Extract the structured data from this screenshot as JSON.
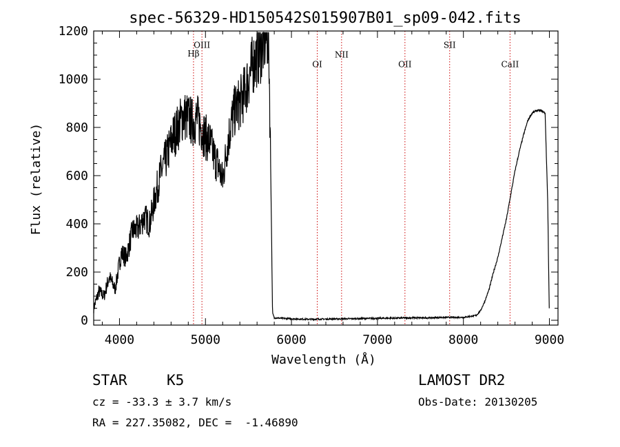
{
  "chart_data": {
    "type": "line",
    "title": "spec-56329-HD150542S015907B01_sp09-042.fits",
    "xlabel": "Wavelength (Å)",
    "ylabel": "Flux (relative)",
    "xlim": [
      3700,
      9100
    ],
    "ylim": [
      -20,
      1200
    ],
    "xticks": [
      4000,
      5000,
      6000,
      7000,
      8000,
      9000
    ],
    "yticks": [
      0,
      200,
      400,
      600,
      800,
      1000,
      1200
    ],
    "grid": false,
    "line_color": "#000000",
    "marker_color": "#cc0000",
    "spectral_lines": [
      {
        "name": "Hβ",
        "wavelength": 4861,
        "label_flux": 1095
      },
      {
        "name": "OIII",
        "wavelength": 4959,
        "label_flux": 1130
      },
      {
        "name": "OI",
        "wavelength": 6300,
        "label_flux": 1050
      },
      {
        "name": "NII",
        "wavelength": 6583,
        "label_flux": 1090
      },
      {
        "name": "OII",
        "wavelength": 7320,
        "label_flux": 1050
      },
      {
        "name": "SII",
        "wavelength": 7840,
        "label_flux": 1130
      },
      {
        "name": "CaII",
        "wavelength": 8542,
        "label_flux": 1050
      }
    ],
    "series": [
      {
        "x": [
          3700,
          3760,
          3820,
          3880,
          3950,
          4020,
          4080,
          4150,
          4220,
          4290,
          4350,
          4420,
          4480,
          4550,
          4620,
          4680,
          4740,
          4800,
          4850,
          4900,
          4950,
          5000,
          5050,
          5100,
          5150,
          5200,
          5250,
          5300,
          5350,
          5400,
          5450,
          5500,
          5550,
          5600,
          5650,
          5700,
          5720,
          5740,
          5760,
          5780,
          5800,
          5900,
          6000,
          6200,
          6400,
          6600,
          6800,
          7000,
          7200,
          7400,
          7600,
          7800,
          8000,
          8150,
          8200,
          8250,
          8300,
          8350,
          8400,
          8450,
          8500,
          8550,
          8600,
          8650,
          8700,
          8750,
          8800,
          8850,
          8900,
          8950,
          8980,
          9000
        ],
        "y": [
          50,
          120,
          100,
          180,
          130,
          280,
          260,
          370,
          380,
          430,
          400,
          520,
          610,
          680,
          760,
          800,
          850,
          840,
          820,
          840,
          800,
          760,
          740,
          680,
          640,
          580,
          720,
          820,
          880,
          900,
          940,
          1000,
          1060,
          1100,
          1120,
          1170,
          1180,
          1080,
          600,
          30,
          10,
          8,
          6,
          4,
          5,
          6,
          7,
          8,
          9,
          10,
          10,
          12,
          12,
          20,
          40,
          80,
          130,
          200,
          260,
          340,
          420,
          520,
          620,
          700,
          770,
          830,
          860,
          870,
          870,
          860,
          500,
          0
        ]
      }
    ]
  },
  "info": {
    "object_class": "STAR",
    "subclass": "K5",
    "survey": "LAMOST DR2",
    "cz": "cz = -33.3 ± 3.7 km/s",
    "obs_date": "Obs-Date: 20130205",
    "coords": "RA = 227.35082, DEC =  -1.46890"
  }
}
